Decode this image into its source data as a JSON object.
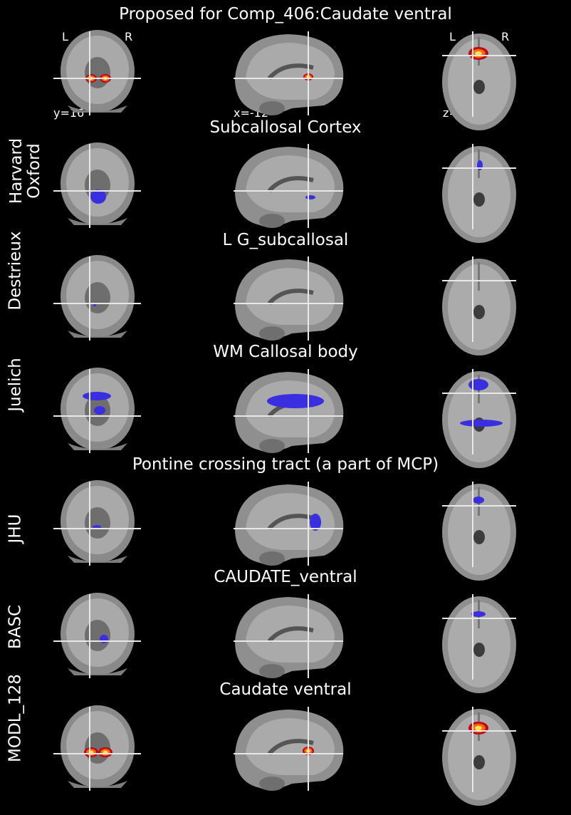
{
  "main_title": "Proposed for Comp_406:Caudate ventral",
  "orientation": {
    "left": "L",
    "right": "R"
  },
  "coords": {
    "coronal": "y=16",
    "sagittal": "x=-12",
    "axial": "z=-4"
  },
  "rows": [
    {
      "atlas": "",
      "region": "Proposed for Comp_406:Caudate ventral",
      "overlay": "#ff6a00"
    },
    {
      "atlas": "Harvard\nOxford",
      "region": "Subcallosal Cortex",
      "overlay": "#3a2fe0"
    },
    {
      "atlas": "Destrieux",
      "region": "L G_subcallosal",
      "overlay": "#3a2fe0"
    },
    {
      "atlas": "Juelich",
      "region": "WM Callosal body",
      "overlay": "#3a2fe0"
    },
    {
      "atlas": "JHU",
      "region": "Pontine crossing tract (a part of MCP)",
      "overlay": "#3a2fe0"
    },
    {
      "atlas": "BASC",
      "region": "CAUDATE_ventral",
      "overlay": "#3a2fe0"
    },
    {
      "atlas": "MODL_128",
      "region": "Caudate ventral",
      "overlay": "#ff6a00"
    }
  ]
}
